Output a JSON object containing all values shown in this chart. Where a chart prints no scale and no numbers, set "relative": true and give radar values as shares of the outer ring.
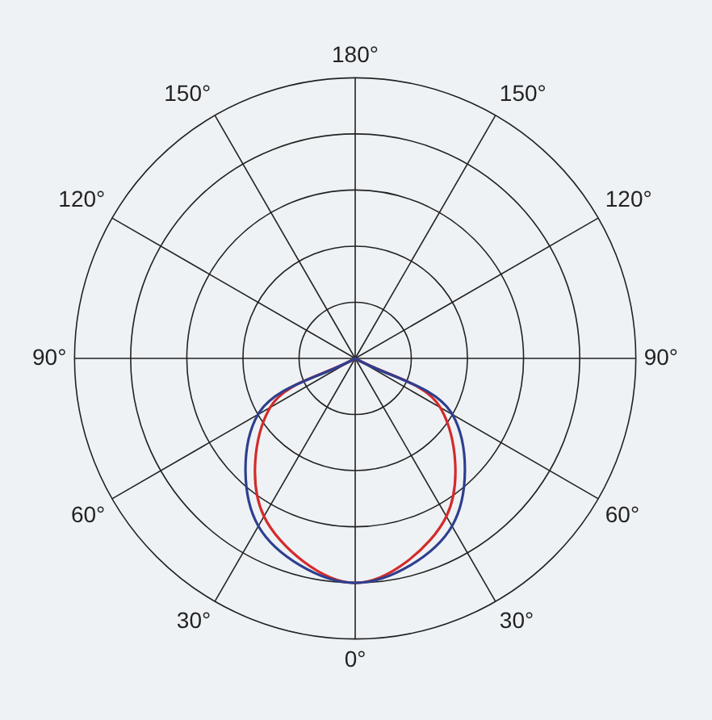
{
  "chart_data": {
    "type": "radar",
    "relative": true,
    "grid": true,
    "legend": false,
    "marker": "none",
    "categories": [
      "180°",
      "150°",
      "120°",
      "90°",
      "60°",
      "30°",
      "0°",
      "30°",
      "60°",
      "90°",
      "120°",
      "150°"
    ],
    "series": [
      {
        "color": "#2e3f8f",
        "values": [
          0,
          0,
          0,
          0,
          0.4,
          0.69,
          0.8,
          0.69,
          0.4,
          0,
          0,
          0
        ]
      },
      {
        "color": "#d42b2b",
        "values": [
          0,
          0,
          0,
          0,
          0.35,
          0.65,
          0.8,
          0.65,
          0.35,
          0,
          0,
          0
        ]
      }
    ]
  }
}
